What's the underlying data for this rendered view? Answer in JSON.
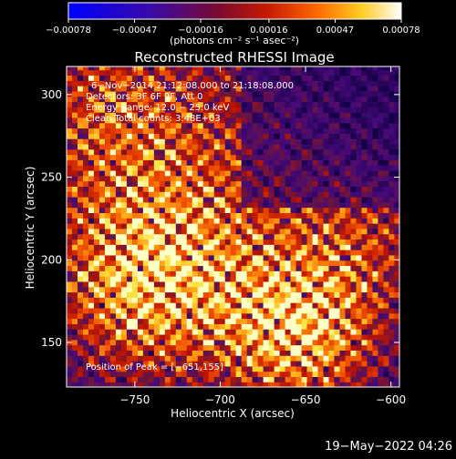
{
  "chart_data": {
    "type": "heatmap",
    "title": "Reconstructed RHESSI Image",
    "xlabel": "Heliocentric X (arcsec)",
    "ylabel": "Heliocentric Y (arcsec)",
    "xlim": [
      -790,
      -595
    ],
    "ylim": [
      123,
      317
    ],
    "xticks": [
      -750,
      -700,
      -650,
      -600
    ],
    "xtick_labels": [
      "−750",
      "−700",
      "−650",
      "−600"
    ],
    "yticks": [
      150,
      200,
      250,
      300
    ],
    "ytick_labels": [
      "150",
      "200",
      "250",
      "300"
    ],
    "colorbar": {
      "min": -0.00078,
      "max": 0.00078,
      "ticks": [
        -0.00078,
        -0.00047,
        -0.00016,
        0.00016,
        0.00047,
        0.00078
      ],
      "tick_labels": [
        "−0.00078",
        "−0.00047",
        "−0.00016",
        "0.00016",
        "0.00047",
        "0.00078"
      ],
      "unit_label": "(photons cm⁻² s⁻¹ asec⁻²)"
    },
    "annotations": [
      "6−Nov−2014 21:12:08.000 to 21:18:08.000",
      "Detectors: 3F 6F 9F, Att 0",
      "Energy Range: 12.0 − 25.0 keV",
      "Clean     Total counts: 3.48E+03"
    ],
    "peak_label": "Position of Peak = [−651,155]",
    "peak": [
      -651,
      155
    ],
    "grid": false
  },
  "footer": {
    "date": "19−May−2022 04:26"
  },
  "colors": {
    "background": "#000000",
    "colormap": [
      "#0000ff",
      "#4b0082",
      "#8b0000",
      "#ff4500",
      "#ffa500",
      "#ffff66",
      "#ffffff"
    ]
  }
}
